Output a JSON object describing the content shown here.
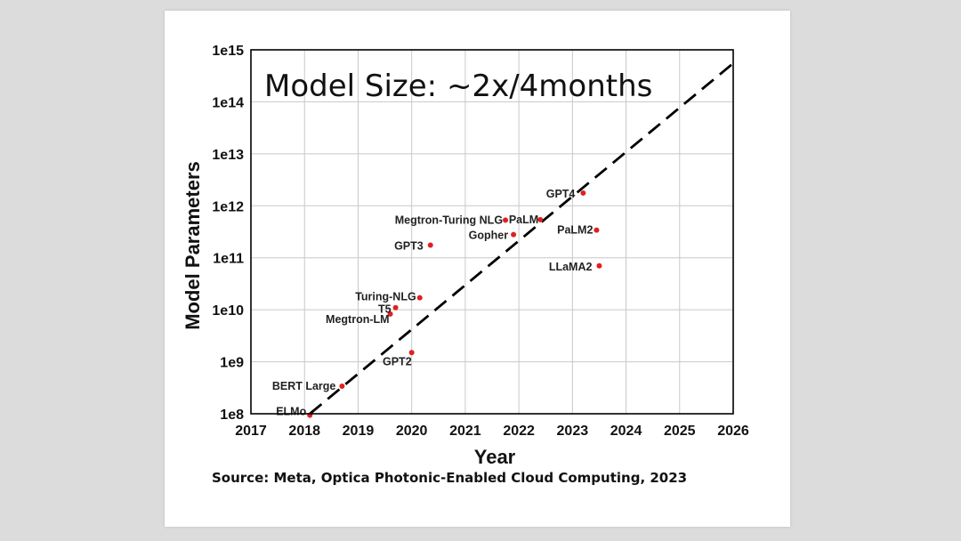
{
  "chart_data": {
    "type": "scatter",
    "title": "Model Size: ~2x/4months",
    "xlabel": "Year",
    "ylabel": "Model Parameters",
    "xlim": [
      2017,
      2026
    ],
    "ylim_log10": [
      8,
      15
    ],
    "x_ticks": [
      2017,
      2018,
      2019,
      2020,
      2021,
      2022,
      2023,
      2024,
      2025,
      2026
    ],
    "x_tick_labels": [
      "2017",
      "2018",
      "2019",
      "2020",
      "2021",
      "2022",
      "2023",
      "2024",
      "2025",
      "2026"
    ],
    "y_ticks_log10": [
      8,
      9,
      10,
      11,
      12,
      13,
      14,
      15
    ],
    "y_tick_labels": [
      "1e8",
      "1e9",
      "1e10",
      "1e11",
      "1e12",
      "1e13",
      "1e14",
      "1e15"
    ],
    "grid": true,
    "points": [
      {
        "name": "ELMo",
        "x": 2018.1,
        "y": 94000000.0
      },
      {
        "name": "BERT Large",
        "x": 2018.7,
        "y": 340000000.0
      },
      {
        "name": "GPT2",
        "x": 2020.0,
        "y": 1500000000.0
      },
      {
        "name": "Megtron-LM",
        "x": 2019.6,
        "y": 8300000000.0
      },
      {
        "name": "T5",
        "x": 2019.7,
        "y": 11000000000.0
      },
      {
        "name": "Turing-NLG",
        "x": 2020.15,
        "y": 17000000000.0
      },
      {
        "name": "GPT3",
        "x": 2020.35,
        "y": 175000000000.0
      },
      {
        "name": "Megtron-Turing NLG",
        "x": 2021.75,
        "y": 530000000000.0
      },
      {
        "name": "PaLM",
        "x": 2022.4,
        "y": 540000000000.0
      },
      {
        "name": "Gopher",
        "x": 2021.9,
        "y": 280000000000.0
      },
      {
        "name": "GPT4",
        "x": 2023.2,
        "y": 1760000000000.0
      },
      {
        "name": "PaLM2",
        "x": 2023.45,
        "y": 340000000000.0
      },
      {
        "name": "LLaMA2",
        "x": 2023.5,
        "y": 70000000000.0
      }
    ],
    "trend_line": {
      "style": "dashed",
      "from": {
        "x": 2018.1,
        "y": 100000000.0
      },
      "to": {
        "x": 2026,
        "y": 550000000000000.0
      }
    },
    "point_color": "#e02020",
    "line_color": "#000000",
    "grid_color": "#c8c8c8"
  },
  "source_text": "Source: Meta, Optica Photonic-Enabled Cloud Computing, 2023"
}
